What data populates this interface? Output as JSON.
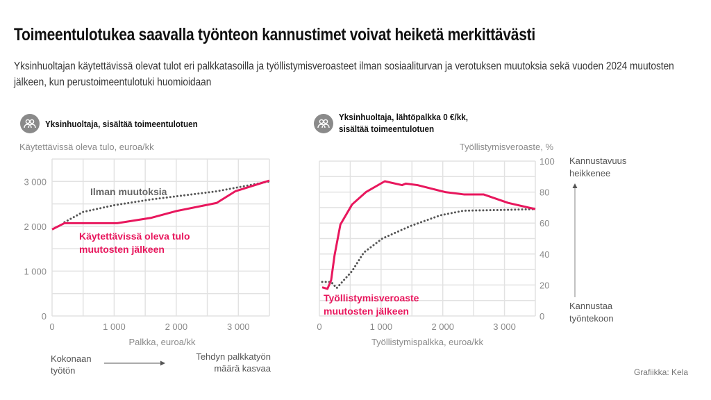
{
  "title": "Toimeentulotukea saavalla työnteon kannustimet voivat heiketä merkittävästi",
  "subtitle": "Yksinhuoltajan käytettävissä olevat tulot eri palkkatasoilla ja työllistymisveroasteet ilman sosiaaliturvan ja verotuksen muutoksia sekä vuoden 2024 muutosten jälkeen, kun perustoimeentulotuki huomioidaan",
  "credit": "Grafiikka: Kela",
  "icons": {
    "panel": "people-icon",
    "arrow": "arrow-icon"
  },
  "colors": {
    "after": "#e8175d",
    "before": "#555555",
    "grid": "#e2e2e2",
    "axis_text": "#8a8a8a"
  },
  "chart_data": [
    {
      "type": "line",
      "panel_title": "Yksinhuoltaja, sisältää toimeentulotuen",
      "ylabel": "Käytettävissä oleva tulo, euroa/kk",
      "xlabel": "Palkka, euroa/kk",
      "xlim": [
        0,
        3500
      ],
      "ylim": [
        0,
        3500
      ],
      "xticks": [
        {
          "v": 0,
          "label": "0"
        },
        {
          "v": 1000,
          "label": "1 000"
        },
        {
          "v": 2000,
          "label": "2 000"
        },
        {
          "v": 3000,
          "label": "3 000"
        }
      ],
      "yticks": [
        {
          "v": 0,
          "label": "0"
        },
        {
          "v": 1000,
          "label": "1 000"
        },
        {
          "v": 2000,
          "label": "2 000"
        },
        {
          "v": 3000,
          "label": "3 000"
        }
      ],
      "grid": true,
      "series": [
        {
          "name": "Ilman muutoksia",
          "style": "dotted",
          "x": [
            200,
            500,
            1000,
            1600,
            2650,
            3500
          ],
          "y": [
            2090,
            2320,
            2470,
            2600,
            2780,
            3000
          ]
        },
        {
          "name": "Käytettävissä oleva tulo muutosten jälkeen",
          "style": "solid",
          "x": [
            0,
            200,
            1050,
            1600,
            2000,
            2650,
            2950,
            3500
          ],
          "y": [
            1930,
            2070,
            2070,
            2190,
            2340,
            2520,
            2780,
            3020
          ]
        }
      ],
      "notes": {
        "left": [
          "Kokonaan",
          "työtön"
        ],
        "right": [
          "Tehdyn palkkatyön",
          "määrä kasvaa"
        ]
      }
    },
    {
      "type": "line",
      "panel_title": [
        "Yksinhuoltaja, lähtöpalkka 0 €/kk,",
        "sisältää toimeentulotuen"
      ],
      "ylabel": "Työllistymisveroaste, %",
      "xlabel": "Työllistymispalkka, euroa/kk",
      "xlim": [
        0,
        3500
      ],
      "ylim": [
        0,
        100
      ],
      "xticks": [
        {
          "v": 0,
          "label": "0"
        },
        {
          "v": 1000,
          "label": "1 000"
        },
        {
          "v": 2000,
          "label": "2 000"
        },
        {
          "v": 3000,
          "label": "3 000"
        }
      ],
      "yticks": [
        {
          "v": 0,
          "label": "0"
        },
        {
          "v": 20,
          "label": "20"
        },
        {
          "v": 40,
          "label": "40"
        },
        {
          "v": 60,
          "label": "60"
        },
        {
          "v": 80,
          "label": "80"
        },
        {
          "v": 100,
          "label": "100"
        }
      ],
      "grid": true,
      "series": [
        {
          "style": "dotted",
          "x": [
            45,
            190,
            280,
            530,
            720,
            1020,
            1470,
            1960,
            2340,
            3000,
            3500
          ],
          "y": [
            22,
            22,
            18,
            29,
            41,
            50,
            58,
            65,
            68,
            68.5,
            69
          ]
        },
        {
          "name": "Työllistymisveroaste muutosten jälkeen",
          "style": "solid",
          "x": [
            45,
            130,
            190,
            245,
            340,
            530,
            755,
            1060,
            1340,
            1400,
            1590,
            2040,
            2340,
            2660,
            3060,
            3500
          ],
          "y": [
            18.5,
            17.5,
            23,
            39,
            59,
            72,
            80,
            87,
            84.5,
            85.5,
            84.5,
            80,
            78.5,
            78.5,
            73,
            69
          ]
        }
      ],
      "annotations": {
        "top": [
          "Kannustavuus",
          "heikkenee"
        ],
        "bottom": [
          "Kannustaa",
          "työntekoon"
        ]
      }
    }
  ]
}
